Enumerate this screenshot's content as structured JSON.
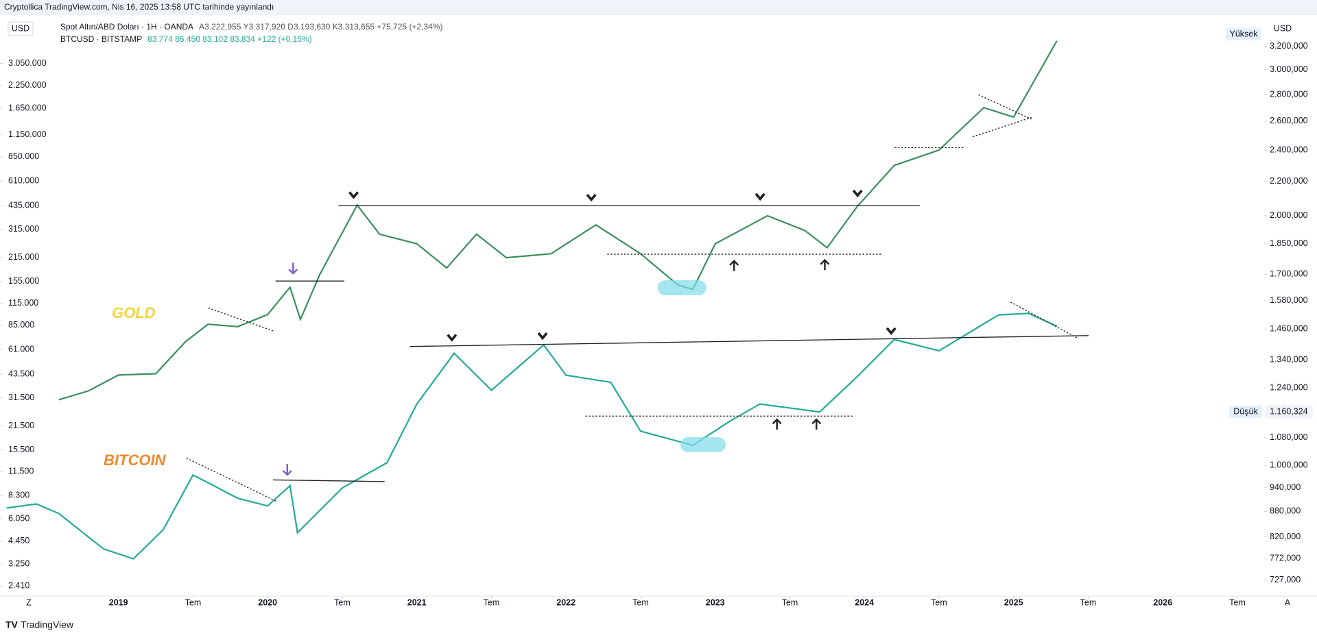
{
  "header": {
    "published": "Cryptollica TradingView.com, Nis 16, 2025 13:58 UTC tarihinde yayınlandı",
    "brand": "TradingView"
  },
  "chart_data": {
    "type": "line",
    "log_scale": true,
    "grid": false,
    "currency_left": "USD",
    "currency_right": "USD",
    "corner_left": "Z",
    "corner_right": "A",
    "high_label": "Yüksek",
    "low_label": "Düşük",
    "low_marker": {
      "value": 1160.324,
      "label": "1.160,324"
    },
    "annotations": [
      "GOLD",
      "BITCOIN"
    ],
    "xlim": [
      2018.206,
      2026.652
    ],
    "xticks": [
      2019,
      {
        "value": 2019.5,
        "label": "Tem"
      },
      2020,
      {
        "value": 2020.5,
        "label": "Tem"
      },
      2021,
      {
        "value": 2021.5,
        "label": "Tem"
      },
      2022,
      {
        "value": 2022.5,
        "label": "Tem"
      },
      2023,
      {
        "value": 2023.5,
        "label": "Tem"
      },
      2024,
      {
        "value": 2024.5,
        "label": "Tem"
      },
      2025,
      {
        "value": 2025.5,
        "label": "Tem"
      },
      2026,
      {
        "value": 2026.5,
        "label": "Tem"
      }
    ],
    "ylim": [
      2120,
      5790000
    ],
    "yticks": [
      {
        "value": 3050000,
        "label": "3.050.000"
      },
      {
        "value": 2250000,
        "label": "2.250.000"
      },
      {
        "value": 1650000,
        "label": "1.650.000"
      },
      {
        "value": 1150000,
        "label": "1.150.000"
      },
      {
        "value": 850000,
        "label": "850.000"
      },
      {
        "value": 610000,
        "label": "610.000"
      },
      {
        "value": 435000,
        "label": "435.000"
      },
      {
        "value": 315000,
        "label": "315.000"
      },
      {
        "value": 215000,
        "label": "215.000"
      },
      {
        "value": 155000,
        "label": "155.000"
      },
      {
        "value": 115000,
        "label": "115.000"
      },
      {
        "value": 85000,
        "label": "85.000"
      },
      {
        "value": 61000,
        "label": "61.000"
      },
      {
        "value": 43500,
        "label": "43.500"
      },
      {
        "value": 31500,
        "label": "31.500"
      },
      {
        "value": 21500,
        "label": "21.500"
      },
      {
        "value": 15500,
        "label": "15.500"
      },
      {
        "value": 11500,
        "label": "11.500"
      },
      {
        "value": 8300,
        "label": "8.300"
      },
      {
        "value": 6050,
        "label": "6.050"
      },
      {
        "value": 4450,
        "label": "4.450"
      },
      {
        "value": 3250,
        "label": "3.250"
      },
      {
        "value": 2410,
        "label": "2.410"
      }
    ],
    "y2lim": [
      697,
      3478
    ],
    "y2ticks": [
      {
        "value": 3200,
        "label": "3.200,000"
      },
      {
        "value": 3000,
        "label": "3.000,000"
      },
      {
        "value": 2800,
        "label": "2.800,000"
      },
      {
        "value": 2600,
        "label": "2.600,000"
      },
      {
        "value": 2400,
        "label": "2.400,000"
      },
      {
        "value": 2200,
        "label": "2.200,000"
      },
      {
        "value": 2000,
        "label": "2.000,000"
      },
      {
        "value": 1850,
        "label": "1.850,000"
      },
      {
        "value": 1700,
        "label": "1.700,000"
      },
      {
        "value": 1580,
        "label": "1.580,000"
      },
      {
        "value": 1460,
        "label": "1.460,000"
      },
      {
        "value": 1340,
        "label": "1.340,000"
      },
      {
        "value": 1240,
        "label": "1.240,000"
      },
      {
        "value": 1080,
        "label": "1.080,000"
      },
      {
        "value": 1000,
        "label": "1.000,000"
      },
      {
        "value": 940,
        "label": "940,000"
      },
      {
        "value": 880,
        "label": "880,000"
      },
      {
        "value": 820,
        "label": "820,000"
      },
      {
        "value": 772,
        "label": "772,000"
      },
      {
        "value": 727,
        "label": "727,000"
      }
    ],
    "series": [
      {
        "name": "Spot Altın/ABD Doları · 1H · OANDA",
        "ohlc": "A3.222,955 Y3.317,920 D3.193,630 K3.313,655 +75,725 (+2,34%)",
        "color": "#3a8f5c",
        "axis": "y2",
        "x": [
          2018.6,
          2018.8,
          2019.0,
          2019.25,
          2019.45,
          2019.6,
          2019.8,
          2020.0,
          2020.15,
          2020.22,
          2020.35,
          2020.6,
          2020.75,
          2021.0,
          2021.2,
          2021.4,
          2021.6,
          2021.9,
          2022.2,
          2022.5,
          2022.75,
          2022.85,
          2023.0,
          2023.35,
          2023.6,
          2023.75,
          2023.95,
          2024.2,
          2024.5,
          2024.8,
          2025.0,
          2025.29
        ],
        "values": [
          1200,
          1230,
          1285,
          1290,
          1410,
          1480,
          1470,
          1520,
          1640,
          1500,
          1700,
          2060,
          1900,
          1850,
          1730,
          1900,
          1780,
          1800,
          1950,
          1800,
          1650,
          1630,
          1850,
          2000,
          1920,
          1830,
          2050,
          2300,
          2400,
          2700,
          2630,
          3250
        ]
      },
      {
        "name": "BTCUSD · BITSTAMP",
        "ohlc": "83.774 86.450 83.102 83.834 +122 (+0,15%)",
        "color": "#22ab94",
        "x": [
          2018.25,
          2018.45,
          2018.6,
          2018.9,
          2019.1,
          2019.3,
          2019.5,
          2019.8,
          2020.0,
          2020.15,
          2020.2,
          2020.5,
          2020.8,
          2021.0,
          2021.25,
          2021.5,
          2021.85,
          2022.0,
          2022.3,
          2022.5,
          2022.85,
          2023.1,
          2023.3,
          2023.7,
          2023.95,
          2024.2,
          2024.5,
          2024.9,
          2025.1,
          2025.29
        ],
        "values": [
          7000,
          7400,
          6500,
          4000,
          3500,
          5200,
          11000,
          8000,
          7200,
          9500,
          5000,
          9200,
          13000,
          29000,
          58000,
          35000,
          65000,
          43000,
          39000,
          20000,
          16500,
          23000,
          29000,
          26000,
          42000,
          70000,
          60000,
          98000,
          100000,
          84000
        ]
      }
    ]
  }
}
